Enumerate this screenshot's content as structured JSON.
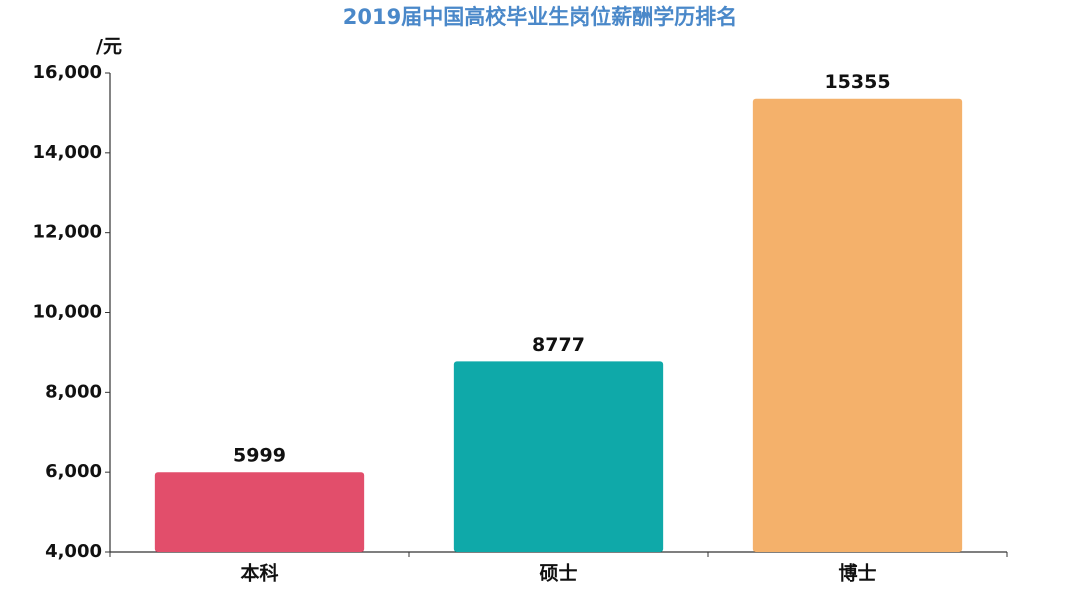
{
  "chart_data": {
    "type": "bar",
    "title": "2019届中国高校毕业生岗位薪酬学历排名",
    "y_label": "/元",
    "categories": [
      "本科",
      "硕士",
      "博士"
    ],
    "values": [
      5999,
      8777,
      15355
    ],
    "colors": [
      "#e24e6b",
      "#0fa9a9",
      "#f4b16b"
    ],
    "ylim": [
      4000,
      16000
    ],
    "yticks": [
      {
        "value": 4000,
        "label": "4,000"
      },
      {
        "value": 6000,
        "label": "6,000"
      },
      {
        "value": 8000,
        "label": "8,000"
      },
      {
        "value": 10000,
        "label": "10,000"
      },
      {
        "value": 12000,
        "label": "12,000"
      },
      {
        "value": 14000,
        "label": "14,000"
      },
      {
        "value": 16000,
        "label": "16,000"
      }
    ],
    "grid": false
  }
}
